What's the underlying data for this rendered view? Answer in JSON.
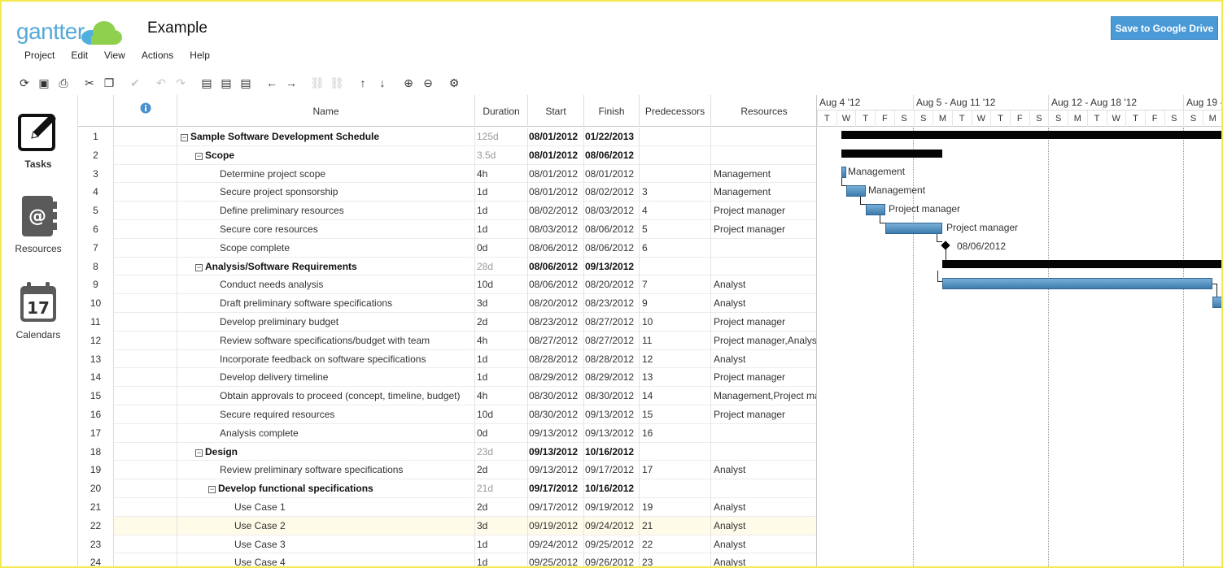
{
  "app": {
    "brand": "gantter",
    "document_title": "Example",
    "save_button": "Save to Google Drive",
    "colors": {
      "brand_blue": "#55a9d8",
      "cloud_green": "#8fd14f",
      "button_blue": "#4a9ad8",
      "task_bar": "#4f8bbd"
    }
  },
  "menu": [
    "Project",
    "Edit",
    "View",
    "Actions",
    "Help"
  ],
  "toolbar": [
    {
      "icon": "refresh-icon",
      "glyph": "⟳"
    },
    {
      "icon": "save-icon",
      "glyph": "▣"
    },
    {
      "icon": "print-icon",
      "glyph": "⎙"
    },
    {
      "icon": "cut-icon",
      "glyph": "✂"
    },
    {
      "icon": "paste-icon",
      "glyph": "❐"
    },
    {
      "icon": "check-icon",
      "glyph": "✔",
      "disabled": true
    },
    {
      "icon": "undo-icon",
      "glyph": "↶",
      "disabled": true
    },
    {
      "icon": "redo-icon",
      "glyph": "↷",
      "disabled": true
    },
    {
      "icon": "insert-task-icon",
      "glyph": "▤"
    },
    {
      "icon": "insert-subtask-icon",
      "glyph": "▤"
    },
    {
      "icon": "insert-milestone-icon",
      "glyph": "▤"
    },
    {
      "icon": "outdent-icon",
      "glyph": "←"
    },
    {
      "icon": "indent-icon",
      "glyph": "→"
    },
    {
      "icon": "link-icon",
      "glyph": "⛓",
      "disabled": true
    },
    {
      "icon": "unlink-icon",
      "glyph": "⛓",
      "disabled": true
    },
    {
      "icon": "move-up-icon",
      "glyph": "↑"
    },
    {
      "icon": "move-down-icon",
      "glyph": "↓"
    },
    {
      "icon": "zoom-in-icon",
      "glyph": "⊕"
    },
    {
      "icon": "zoom-out-icon",
      "glyph": "⊖"
    },
    {
      "icon": "settings-icon",
      "glyph": "⚙"
    }
  ],
  "nav": [
    {
      "label": "Tasks",
      "icon": "tasks-edit-icon",
      "active": true
    },
    {
      "label": "Resources",
      "icon": "address-book-icon",
      "active": false
    },
    {
      "label": "Calendars",
      "icon": "calendar-icon",
      "active": false,
      "calendar_day": "17"
    }
  ],
  "grid": {
    "columns": {
      "info": "info-icon",
      "name": "Name",
      "duration": "Duration",
      "start": "Start",
      "finish": "Finish",
      "predecessors": "Predecessors",
      "resources": "Resources"
    },
    "rows": [
      {
        "id": "1",
        "name": "Sample Software Development Schedule",
        "level": 0,
        "summary": true,
        "duration": "125d",
        "start": "08/01/2012",
        "finish": "01/22/2013",
        "pred": "",
        "res": ""
      },
      {
        "id": "2",
        "name": "Scope",
        "level": 1,
        "summary": true,
        "duration": "3.5d",
        "start": "08/01/2012",
        "finish": "08/06/2012",
        "pred": "",
        "res": ""
      },
      {
        "id": "3",
        "name": "Determine project scope",
        "level": 2,
        "summary": false,
        "duration": "4h",
        "start": "08/01/2012",
        "finish": "08/01/2012",
        "pred": "",
        "res": "Management"
      },
      {
        "id": "4",
        "name": "Secure project sponsorship",
        "level": 2,
        "summary": false,
        "duration": "1d",
        "start": "08/01/2012",
        "finish": "08/02/2012",
        "pred": "3",
        "res": "Management"
      },
      {
        "id": "5",
        "name": "Define preliminary resources",
        "level": 2,
        "summary": false,
        "duration": "1d",
        "start": "08/02/2012",
        "finish": "08/03/2012",
        "pred": "4",
        "res": "Project manager"
      },
      {
        "id": "6",
        "name": "Secure core resources",
        "level": 2,
        "summary": false,
        "duration": "1d",
        "start": "08/03/2012",
        "finish": "08/06/2012",
        "pred": "5",
        "res": "Project manager"
      },
      {
        "id": "7",
        "name": "Scope complete",
        "level": 2,
        "summary": false,
        "duration": "0d",
        "start": "08/06/2012",
        "finish": "08/06/2012",
        "pred": "6",
        "res": ""
      },
      {
        "id": "8",
        "name": "Analysis/Software Requirements",
        "level": 1,
        "summary": true,
        "duration": "28d",
        "start": "08/06/2012",
        "finish": "09/13/2012",
        "pred": "",
        "res": ""
      },
      {
        "id": "9",
        "name": "Conduct needs analysis",
        "level": 2,
        "summary": false,
        "duration": "10d",
        "start": "08/06/2012",
        "finish": "08/20/2012",
        "pred": "7",
        "res": "Analyst"
      },
      {
        "id": "10",
        "name": "Draft preliminary software specifications",
        "level": 2,
        "summary": false,
        "duration": "3d",
        "start": "08/20/2012",
        "finish": "08/23/2012",
        "pred": "9",
        "res": "Analyst"
      },
      {
        "id": "11",
        "name": "Develop preliminary budget",
        "level": 2,
        "summary": false,
        "duration": "2d",
        "start": "08/23/2012",
        "finish": "08/27/2012",
        "pred": "10",
        "res": "Project manager"
      },
      {
        "id": "12",
        "name": "Review software specifications/budget with team",
        "level": 2,
        "summary": false,
        "duration": "4h",
        "start": "08/27/2012",
        "finish": "08/27/2012",
        "pred": "11",
        "res": "Project manager,Analyst"
      },
      {
        "id": "13",
        "name": "Incorporate feedback on software specifications",
        "level": 2,
        "summary": false,
        "duration": "1d",
        "start": "08/28/2012",
        "finish": "08/28/2012",
        "pred": "12",
        "res": "Analyst"
      },
      {
        "id": "14",
        "name": "Develop delivery timeline",
        "level": 2,
        "summary": false,
        "duration": "1d",
        "start": "08/29/2012",
        "finish": "08/29/2012",
        "pred": "13",
        "res": "Project manager"
      },
      {
        "id": "15",
        "name": "Obtain approvals to proceed (concept, timeline, budget)",
        "level": 2,
        "summary": false,
        "duration": "4h",
        "start": "08/30/2012",
        "finish": "08/30/2012",
        "pred": "14",
        "res": "Management,Project manager"
      },
      {
        "id": "16",
        "name": "Secure required resources",
        "level": 2,
        "summary": false,
        "duration": "10d",
        "start": "08/30/2012",
        "finish": "09/13/2012",
        "pred": "15",
        "res": "Project manager"
      },
      {
        "id": "17",
        "name": "Analysis complete",
        "level": 2,
        "summary": false,
        "duration": "0d",
        "start": "09/13/2012",
        "finish": "09/13/2012",
        "pred": "16",
        "res": ""
      },
      {
        "id": "18",
        "name": "Design",
        "level": 1,
        "summary": true,
        "duration": "23d",
        "start": "09/13/2012",
        "finish": "10/16/2012",
        "pred": "",
        "res": ""
      },
      {
        "id": "19",
        "name": "Review preliminary software specifications",
        "level": 2,
        "summary": false,
        "duration": "2d",
        "start": "09/13/2012",
        "finish": "09/17/2012",
        "pred": "17",
        "res": "Analyst"
      },
      {
        "id": "20",
        "name": "Develop functional specifications",
        "level": 2,
        "summary": true,
        "duration": "21d",
        "start": "09/17/2012",
        "finish": "10/16/2012",
        "pred": "",
        "res": ""
      },
      {
        "id": "21",
        "name": "Use Case 1",
        "level": 3,
        "summary": false,
        "duration": "2d",
        "start": "09/17/2012",
        "finish": "09/19/2012",
        "pred": "19",
        "res": "Analyst"
      },
      {
        "id": "22",
        "name": "Use Case 2",
        "level": 3,
        "summary": false,
        "duration": "3d",
        "start": "09/19/2012",
        "finish": "09/24/2012",
        "pred": "21",
        "res": "Analyst",
        "highlighted": true
      },
      {
        "id": "23",
        "name": "Use Case 3",
        "level": 3,
        "summary": false,
        "duration": "1d",
        "start": "09/24/2012",
        "finish": "09/25/2012",
        "pred": "22",
        "res": "Analyst"
      },
      {
        "id": "24",
        "name": "Use Case 4",
        "level": 3,
        "summary": false,
        "duration": "1d",
        "start": "09/25/2012",
        "finish": "09/26/2012",
        "pred": "23",
        "res": "Analyst"
      }
    ]
  },
  "gantt": {
    "weeks": [
      "Aug 4 '12",
      "Aug 5 - Aug 11 '12",
      "Aug 12 - Aug 18 '12",
      "Aug 19 -"
    ],
    "days": [
      "T",
      "W",
      "T",
      "F",
      "S",
      "S",
      "M",
      "T",
      "W",
      "T",
      "F",
      "S",
      "S",
      "M",
      "T",
      "W",
      "T",
      "F",
      "S",
      "S",
      "M"
    ],
    "bar_labels": [
      "Management",
      "Management",
      "Project manager",
      "Project manager",
      "08/06/2012"
    ]
  }
}
